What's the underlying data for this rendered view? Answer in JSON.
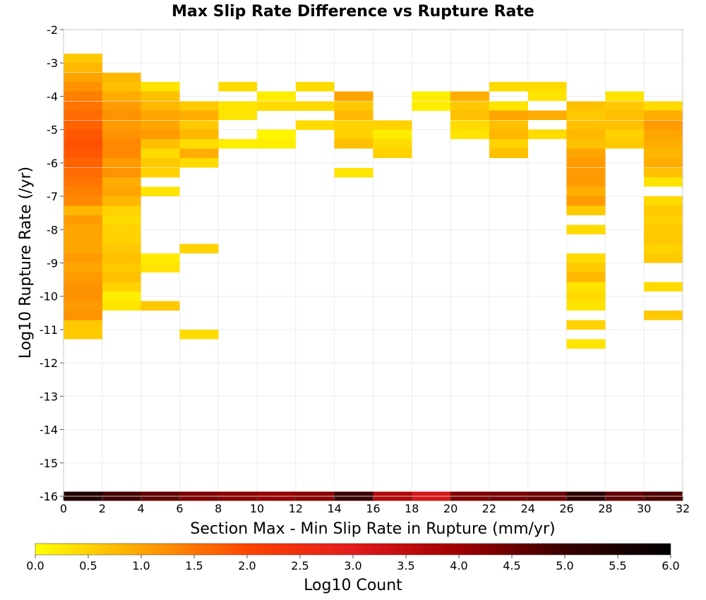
{
  "chart_data": {
    "type": "heatmap",
    "title": "Max Slip Rate Difference vs Rupture Rate",
    "xlabel": "Section Max - Min Slip Rate in Rupture (mm/yr)",
    "ylabel": "Log10 Rupture Rate (/yr)",
    "xlim": [
      0,
      32
    ],
    "ylim": [
      -16,
      -2
    ],
    "x_bin_width": 2,
    "y_bin_height": 0.2857,
    "x_ticks": [
      "0",
      "2",
      "4",
      "6",
      "8",
      "10",
      "12",
      "14",
      "16",
      "18",
      "20",
      "22",
      "24",
      "26",
      "28",
      "30",
      "32"
    ],
    "y_ticks": [
      "-2",
      "-3",
      "-4",
      "-5",
      "-6",
      "-7",
      "-8",
      "-9",
      "-10",
      "-11",
      "-12",
      "-13",
      "-14",
      "-15",
      "-16"
    ],
    "grid": true,
    "colorbar": {
      "label": "Log10 Count",
      "range": [
        0,
        6
      ],
      "ticks": [
        "0.0",
        "0.5",
        "1.0",
        "1.5",
        "2.0",
        "2.5",
        "3.0",
        "3.5",
        "4.0",
        "4.5",
        "5.0",
        "5.5",
        "6.0"
      ],
      "colors": [
        "#ffff00",
        "#ffa500",
        "#ff4500",
        "#e41a1c",
        "#a00000",
        "#3a0000",
        "#000000"
      ]
    },
    "columns": [
      {
        "x": 1,
        "cells": [
          [
            -2.86,
            0.6
          ],
          [
            -3.14,
            0.8
          ],
          [
            -3.43,
            1.0
          ],
          [
            -3.71,
            1.2
          ],
          [
            -4.0,
            1.4
          ],
          [
            -4.29,
            1.5
          ],
          [
            -4.57,
            1.6
          ],
          [
            -4.86,
            1.7
          ],
          [
            -5.14,
            1.8
          ],
          [
            -5.43,
            1.9
          ],
          [
            -5.71,
            1.8
          ],
          [
            -6.0,
            1.7
          ],
          [
            -6.29,
            1.6
          ],
          [
            -6.57,
            1.5
          ],
          [
            -6.86,
            1.4
          ],
          [
            -7.14,
            1.3
          ],
          [
            -7.43,
            0.8
          ],
          [
            -7.71,
            1.1
          ],
          [
            -8.0,
            1.0
          ],
          [
            -8.29,
            1.0
          ],
          [
            -8.57,
            1.0
          ],
          [
            -8.86,
            1.1
          ],
          [
            -9.14,
            1.0
          ],
          [
            -9.43,
            1.1
          ],
          [
            -9.71,
            1.2
          ],
          [
            -10.0,
            1.2
          ],
          [
            -10.29,
            1.1
          ],
          [
            -10.57,
            1.2
          ],
          [
            -10.86,
            0.6
          ],
          [
            -11.14,
            0.6
          ],
          [
            -16.0,
            5.4
          ]
        ]
      },
      {
        "x": 3,
        "cells": [
          [
            -3.43,
            0.8
          ],
          [
            -3.71,
            0.7
          ],
          [
            -4.0,
            0.9
          ],
          [
            -4.29,
            1.1
          ],
          [
            -4.57,
            1.2
          ],
          [
            -4.86,
            1.1
          ],
          [
            -5.14,
            1.2
          ],
          [
            -5.43,
            1.3
          ],
          [
            -5.71,
            1.3
          ],
          [
            -6.0,
            1.1
          ],
          [
            -6.29,
            1.2
          ],
          [
            -6.57,
            0.9
          ],
          [
            -6.86,
            1.0
          ],
          [
            -7.14,
            0.8
          ],
          [
            -7.43,
            0.5
          ],
          [
            -7.71,
            0.4
          ],
          [
            -8.0,
            0.5
          ],
          [
            -8.29,
            0.5
          ],
          [
            -8.57,
            0.6
          ],
          [
            -8.86,
            0.7
          ],
          [
            -9.14,
            0.6
          ],
          [
            -9.43,
            0.7
          ],
          [
            -9.71,
            0.5
          ],
          [
            -10.0,
            0.2
          ],
          [
            -10.29,
            0.3
          ],
          [
            -16.0,
            4.9
          ]
        ]
      },
      {
        "x": 5,
        "cells": [
          [
            -3.71,
            0.3
          ],
          [
            -4.0,
            0.7
          ],
          [
            -4.29,
            0.8
          ],
          [
            -4.57,
            1.0
          ],
          [
            -4.86,
            1.0
          ],
          [
            -5.14,
            1.1
          ],
          [
            -5.43,
            0.7
          ],
          [
            -5.71,
            0.4
          ],
          [
            -6.0,
            0.6
          ],
          [
            -6.29,
            0.5
          ],
          [
            -6.86,
            0.3
          ],
          [
            -8.86,
            0.2
          ],
          [
            -9.14,
            0.3
          ],
          [
            -10.29,
            0.6
          ],
          [
            -16.0,
            4.6
          ]
        ]
      },
      {
        "x": 7,
        "cells": [
          [
            -4.29,
            0.6
          ],
          [
            -4.57,
            0.9
          ],
          [
            -4.86,
            0.6
          ],
          [
            -5.14,
            0.8
          ],
          [
            -5.43,
            0.4
          ],
          [
            -5.71,
            0.9
          ],
          [
            -6.0,
            0.4
          ],
          [
            -8.57,
            0.5
          ],
          [
            -11.14,
            0.4
          ],
          [
            -16.0,
            4.3
          ]
        ]
      },
      {
        "x": 9,
        "cells": [
          [
            -3.71,
            0.4
          ],
          [
            -4.29,
            0.3
          ],
          [
            -4.57,
            0.3
          ],
          [
            -5.43,
            0.2
          ],
          [
            -16.0,
            4.2
          ]
        ]
      },
      {
        "x": 11,
        "cells": [
          [
            -4.0,
            0.2
          ],
          [
            -4.29,
            0.4
          ],
          [
            -5.14,
            0.1
          ],
          [
            -5.43,
            0.2
          ],
          [
            -16.0,
            4.1
          ]
        ]
      },
      {
        "x": 13,
        "cells": [
          [
            -3.71,
            0.4
          ],
          [
            -4.29,
            0.4
          ],
          [
            -4.86,
            0.4
          ],
          [
            -16.0,
            4.2
          ]
        ]
      },
      {
        "x": 15,
        "cells": [
          [
            -4.0,
            1.0
          ],
          [
            -4.29,
            0.6
          ],
          [
            -4.57,
            0.8
          ],
          [
            -4.86,
            0.5
          ],
          [
            -5.14,
            0.5
          ],
          [
            -5.43,
            0.7
          ],
          [
            -6.29,
            0.3
          ],
          [
            -16.0,
            5.0
          ]
        ]
      },
      {
        "x": 17,
        "cells": [
          [
            -4.86,
            0.5
          ],
          [
            -5.14,
            0.2
          ],
          [
            -5.43,
            0.4
          ],
          [
            -5.71,
            0.5
          ],
          [
            -16.0,
            3.7
          ]
        ]
      },
      {
        "x": 19,
        "cells": [
          [
            -4.0,
            0.2
          ],
          [
            -4.29,
            0.2
          ],
          [
            -16.0,
            3.2
          ]
        ]
      },
      {
        "x": 21,
        "cells": [
          [
            -4.0,
            0.9
          ],
          [
            -4.29,
            0.6
          ],
          [
            -4.57,
            0.7
          ],
          [
            -4.86,
            0.4
          ],
          [
            -5.14,
            0.3
          ],
          [
            -16.0,
            4.3
          ]
        ]
      },
      {
        "x": 23,
        "cells": [
          [
            -3.71,
            0.4
          ],
          [
            -4.29,
            0.3
          ],
          [
            -4.57,
            1.0
          ],
          [
            -4.86,
            0.7
          ],
          [
            -5.14,
            0.8
          ],
          [
            -5.43,
            0.5
          ],
          [
            -5.71,
            0.7
          ],
          [
            -16.0,
            4.4
          ]
        ]
      },
      {
        "x": 25,
        "cells": [
          [
            -3.71,
            0.4
          ],
          [
            -4.0,
            0.3
          ],
          [
            -4.57,
            0.9
          ],
          [
            -5.14,
            0.4
          ],
          [
            -16.0,
            4.5
          ]
        ]
      },
      {
        "x": 27,
        "cells": [
          [
            -4.29,
            0.7
          ],
          [
            -4.57,
            0.6
          ],
          [
            -4.86,
            0.7
          ],
          [
            -5.14,
            0.8
          ],
          [
            -5.43,
            0.7
          ],
          [
            -5.71,
            1.0
          ],
          [
            -6.0,
            1.1
          ],
          [
            -6.29,
            1.1
          ],
          [
            -6.57,
            1.1
          ],
          [
            -6.86,
            0.9
          ],
          [
            -7.14,
            1.1
          ],
          [
            -7.43,
            0.6
          ],
          [
            -8.0,
            0.4
          ],
          [
            -8.86,
            0.4
          ],
          [
            -9.14,
            0.6
          ],
          [
            -9.43,
            0.8
          ],
          [
            -9.71,
            0.3
          ],
          [
            -10.0,
            0.4
          ],
          [
            -10.29,
            0.3
          ],
          [
            -10.86,
            0.5
          ],
          [
            -11.43,
            0.3
          ],
          [
            -16.0,
            5.2
          ]
        ]
      },
      {
        "x": 29,
        "cells": [
          [
            -4.0,
            0.3
          ],
          [
            -4.29,
            0.6
          ],
          [
            -4.57,
            0.7
          ],
          [
            -4.86,
            0.7
          ],
          [
            -5.14,
            0.5
          ],
          [
            -5.43,
            0.6
          ],
          [
            -16.0,
            4.6
          ]
        ]
      },
      {
        "x": 31,
        "cells": [
          [
            -4.29,
            0.4
          ],
          [
            -4.57,
            0.9
          ],
          [
            -4.86,
            1.1
          ],
          [
            -5.14,
            1.0
          ],
          [
            -5.43,
            0.9
          ],
          [
            -5.71,
            0.8
          ],
          [
            -6.0,
            0.9
          ],
          [
            -6.29,
            0.7
          ],
          [
            -6.57,
            0.3
          ],
          [
            -7.14,
            0.4
          ],
          [
            -7.43,
            0.6
          ],
          [
            -7.71,
            0.5
          ],
          [
            -8.0,
            0.6
          ],
          [
            -8.29,
            0.6
          ],
          [
            -8.57,
            0.5
          ],
          [
            -8.86,
            0.6
          ],
          [
            -9.71,
            0.4
          ],
          [
            -10.57,
            0.6
          ],
          [
            -16.0,
            4.8
          ]
        ]
      }
    ]
  }
}
